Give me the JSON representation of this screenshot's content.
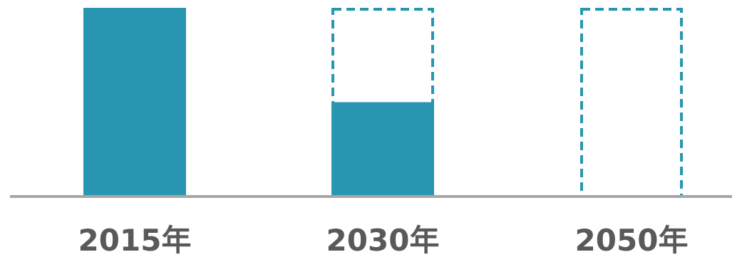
{
  "chart_data": {
    "type": "bar",
    "categories": [
      "2015年",
      "2030年",
      "2050年"
    ],
    "values": [
      100,
      50,
      0
    ],
    "reference_values": [
      100,
      100,
      100
    ],
    "ylim": [
      0,
      100
    ],
    "xlabel": "",
    "ylabel": "",
    "grid": false,
    "legend": "none"
  },
  "colors": {
    "bar_fill": "#2896B1",
    "reference_outline": "#2896B1",
    "baseline": "#A6A6A6",
    "label_text": "#595959"
  }
}
